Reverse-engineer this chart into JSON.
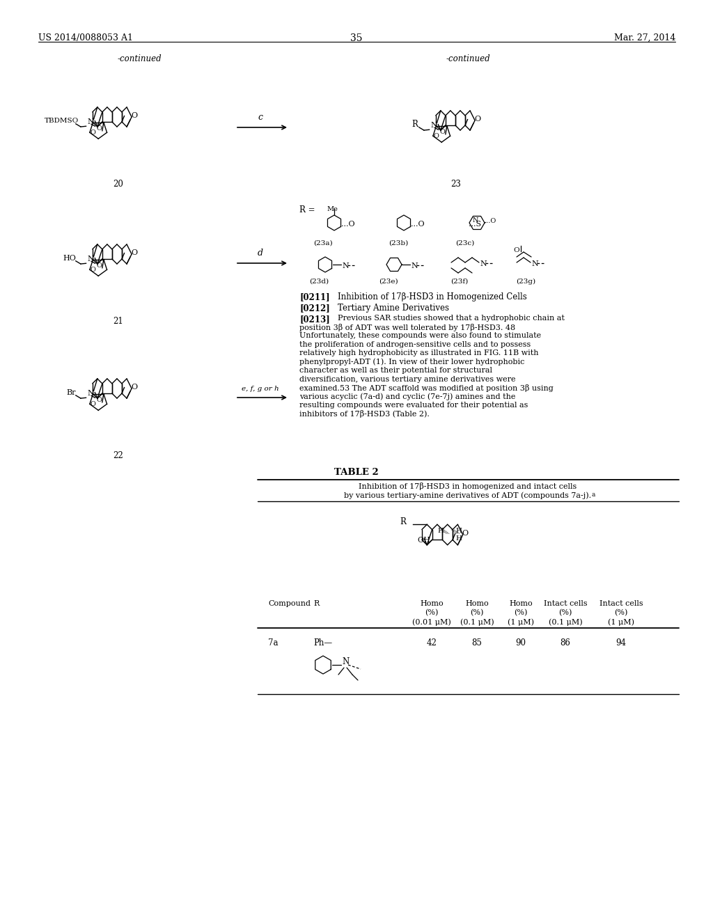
{
  "page_number": "35",
  "patent_number": "US 2014/0088053 A1",
  "patent_date": "Mar. 27, 2014",
  "background_color": "#ffffff",
  "text_color": "#000000",
  "header_left": "US 2014/0088053 A1",
  "header_right": "Mar. 27, 2014",
  "page_num": "35",
  "continued_left": "-continued",
  "continued_right": "-continued",
  "compound_labels_left": [
    "20",
    "21",
    "22"
  ],
  "reaction_labels": [
    "c",
    "d",
    "e, f, g or h"
  ],
  "paragraph_0211_title": "Inhibition of 17β-HSD3 in Homogenized Cells",
  "paragraph_0212_title": "Tertiary Amine Derivatives",
  "paragraph_0213_text": "Previous SAR studies showed that a hydrophobic chain at position 3β of ADT was well tolerated by 17β-HSD3. 48 Unfortunately, these compounds were also found to stimulate the proliferation of androgen-sensitive cells and to possess relatively high hydrophobicity as illustrated in FIG. 11B with phenylpropyl-ADT (1). In view of their lower hydrophobic character as well as their potential for structural diversification, various tertiary amine derivatives were examined.53 The ADT scaffold was modified at position 3β using various acyclic (7a-d) and cyclic (7e-7j) amines and the resulting compounds were evaluated for their potential as inhibitors of 17β-HSD3 (Table 2).",
  "table2_title": "TABLE 2",
  "table2_subtitle1": "Inhibition of 17β-HSD3 in homogenized and intact cells",
  "table2_subtitle2": "by various tertiary-amine derivatives of ADT (compounds 7a-j).",
  "table2_subtitle2a": "a",
  "table_col_headers_line1": [
    "Compound",
    "R",
    "Homo",
    "Homo",
    "Homo",
    "Intact cells",
    "Intact cells"
  ],
  "table_col_headers_line2": [
    "",
    "",
    "(%)",
    "(%)",
    "(%)",
    "(%)",
    "(%)"
  ],
  "table_col_headers_line3": [
    "",
    "",
    "(0.01 μM)",
    "(0.1 μM)",
    "(1 μM)",
    "(0.1 μM)",
    "(1 μM)"
  ],
  "table_row_compound": "7a",
  "table_row_values": [
    42,
    85,
    90,
    86,
    94
  ],
  "r_group_labels": [
    "(23a)",
    "(23b)",
    "(23c)",
    "(23d)",
    "(23e)",
    "(23f)",
    "(23g)"
  ],
  "font_size_body": 8.5,
  "font_size_header": 9
}
